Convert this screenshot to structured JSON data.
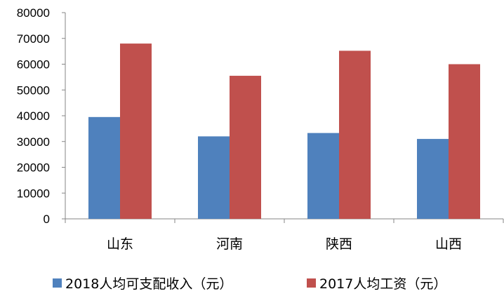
{
  "chart_data": {
    "type": "bar",
    "categories": [
      "山东",
      "河南",
      "陕西",
      "山西"
    ],
    "series": [
      {
        "name": "2018人均可支配收入（元）",
        "values": [
          39500,
          32000,
          33300,
          31000
        ],
        "color": "#4f81bd"
      },
      {
        "name": "2017人均工资（元）",
        "values": [
          68000,
          55500,
          65200,
          60000
        ],
        "color": "#c0504d"
      }
    ],
    "ylim": [
      0,
      80000
    ],
    "yticks": [
      0,
      10000,
      20000,
      30000,
      40000,
      50000,
      60000,
      70000,
      80000
    ],
    "grid": false,
    "legend_position": "bottom"
  }
}
